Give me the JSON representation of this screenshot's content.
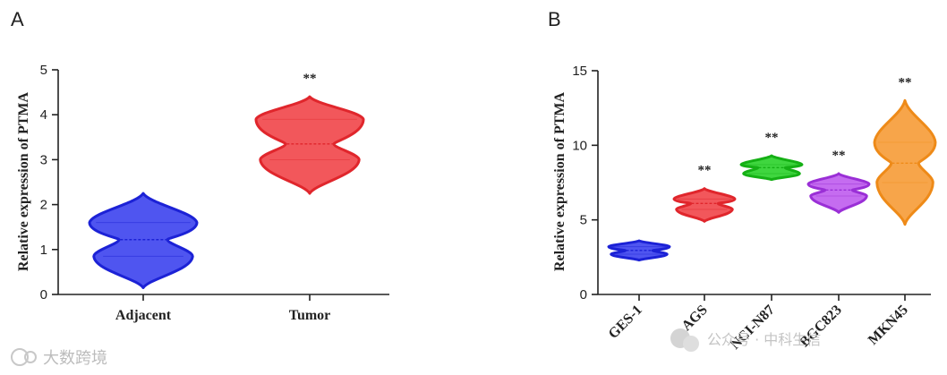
{
  "chart_data": [
    {
      "type": "violin",
      "panel": "A",
      "ylabel": "Relative expression of PTMA",
      "ylim": [
        0,
        5
      ],
      "yticks": [
        "0",
        "1",
        "2",
        "3",
        "4",
        "5"
      ],
      "categories": [
        "Adjacent",
        "Tumor"
      ],
      "significance": [
        "",
        "**"
      ],
      "colors": [
        "#4f55f0",
        "#f2575b"
      ],
      "stroke_colors": [
        "#1c22d6",
        "#e0262c"
      ],
      "groups": [
        {
          "name": "Adjacent",
          "min": 0.15,
          "q1": 0.85,
          "median": 1.22,
          "q3": 1.6,
          "max": 2.25
        },
        {
          "name": "Tumor",
          "min": 2.25,
          "q1": 3.0,
          "median": 3.35,
          "q3": 3.9,
          "max": 4.4
        }
      ]
    },
    {
      "type": "violin",
      "panel": "B",
      "ylabel": "Relative expression of PTMA",
      "ylim": [
        0,
        15
      ],
      "yticks": [
        "0",
        "5",
        "10",
        "15"
      ],
      "categories": [
        "GES-1",
        "AGS",
        "NCI-N87",
        "BGC823",
        "MKN45"
      ],
      "significance": [
        "",
        "**",
        "**",
        "**",
        "**"
      ],
      "colors": [
        "#4f55f0",
        "#f2575b",
        "#3fd63f",
        "#c56cf0",
        "#f7a54a"
      ],
      "stroke_colors": [
        "#1c22d6",
        "#e0262c",
        "#15b015",
        "#9a2fd6",
        "#ee8a18"
      ],
      "groups": [
        {
          "name": "GES-1",
          "min": 2.3,
          "q1": 2.7,
          "median": 2.95,
          "q3": 3.2,
          "max": 3.6
        },
        {
          "name": "AGS",
          "min": 4.9,
          "q1": 5.7,
          "median": 6.1,
          "q3": 6.4,
          "max": 7.1
        },
        {
          "name": "NCI-N87",
          "min": 7.7,
          "q1": 8.1,
          "median": 8.5,
          "q3": 8.7,
          "max": 9.3
        },
        {
          "name": "BGC823",
          "min": 5.5,
          "q1": 6.6,
          "median": 7.0,
          "q3": 7.4,
          "max": 8.1
        },
        {
          "name": "MKN45",
          "min": 4.7,
          "q1": 7.5,
          "median": 8.8,
          "q3": 10.2,
          "max": 13.0
        }
      ]
    }
  ],
  "watermark": {
    "left_text": "大数跨境",
    "right_text": "公众号 · 中科生信"
  }
}
